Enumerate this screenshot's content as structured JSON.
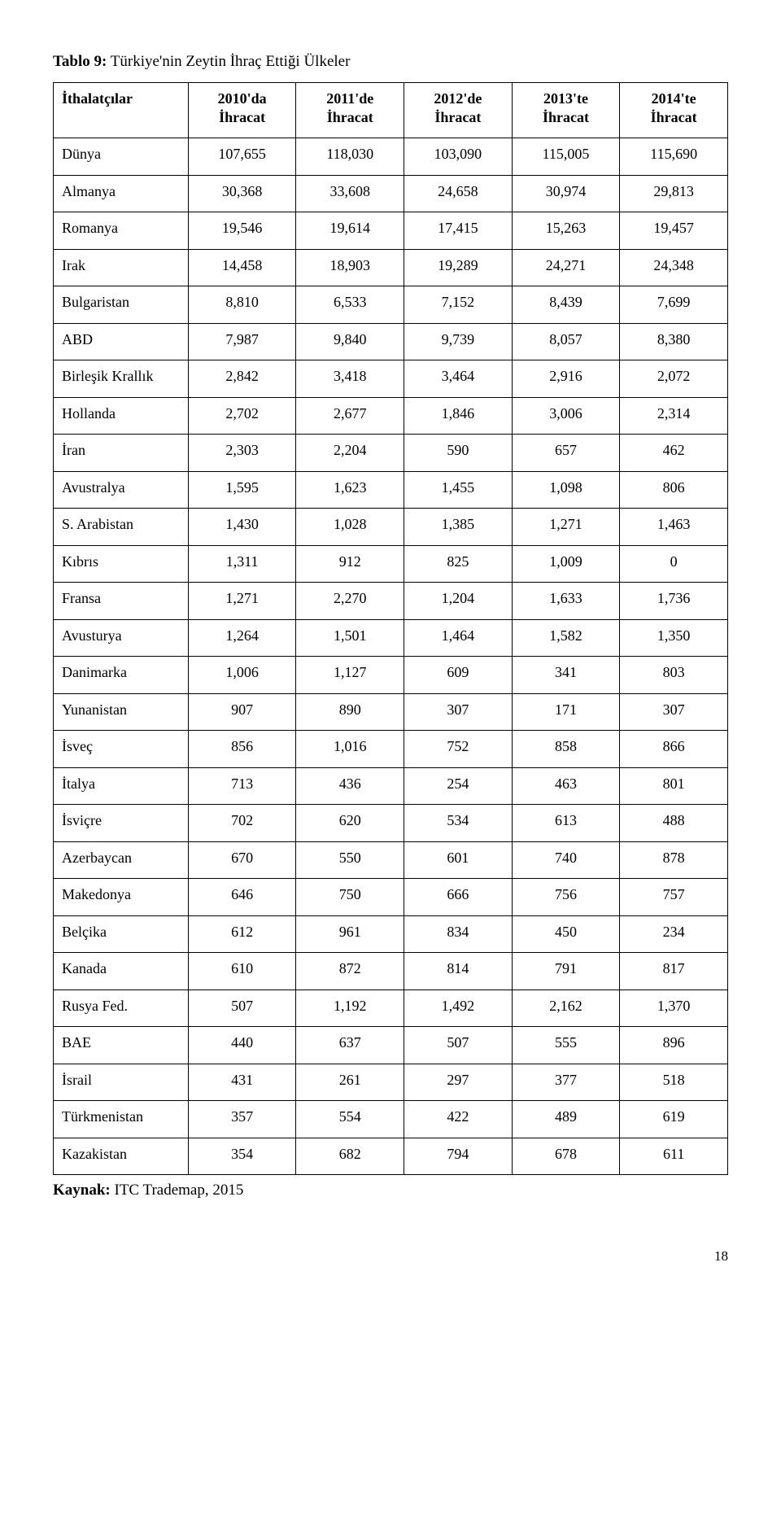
{
  "caption_bold": "Tablo 9:",
  "caption_rest": " Türkiye'nin Zeytin İhraç Ettiği Ülkeler",
  "headers": [
    "İthalatçılar",
    "2010'da İhracat",
    "2011'de İhracat",
    "2012'de İhracat",
    "2013'te İhracat",
    "2014'te İhracat"
  ],
  "rows": [
    [
      "Dünya",
      "107,655",
      "118,030",
      "103,090",
      "115,005",
      "115,690"
    ],
    [
      "Almanya",
      "30,368",
      "33,608",
      "24,658",
      "30,974",
      "29,813"
    ],
    [
      "Romanya",
      "19,546",
      "19,614",
      "17,415",
      "15,263",
      "19,457"
    ],
    [
      "Irak",
      "14,458",
      "18,903",
      "19,289",
      "24,271",
      "24,348"
    ],
    [
      "Bulgaristan",
      "8,810",
      "6,533",
      "7,152",
      "8,439",
      "7,699"
    ],
    [
      "ABD",
      "7,987",
      "9,840",
      "9,739",
      "8,057",
      "8,380"
    ],
    [
      "Birleşik Krallık",
      "2,842",
      "3,418",
      "3,464",
      "2,916",
      "2,072"
    ],
    [
      "Hollanda",
      "2,702",
      "2,677",
      "1,846",
      "3,006",
      "2,314"
    ],
    [
      "İran",
      "2,303",
      "2,204",
      "590",
      "657",
      "462"
    ],
    [
      "Avustralya",
      "1,595",
      "1,623",
      "1,455",
      "1,098",
      "806"
    ],
    [
      "S. Arabistan",
      "1,430",
      "1,028",
      "1,385",
      "1,271",
      "1,463"
    ],
    [
      "Kıbrıs",
      "1,311",
      "912",
      "825",
      "1,009",
      "0"
    ],
    [
      "Fransa",
      "1,271",
      "2,270",
      "1,204",
      "1,633",
      "1,736"
    ],
    [
      "Avusturya",
      "1,264",
      "1,501",
      "1,464",
      "1,582",
      "1,350"
    ],
    [
      "Danimarka",
      "1,006",
      "1,127",
      "609",
      "341",
      "803"
    ],
    [
      "Yunanistan",
      "907",
      "890",
      "307",
      "171",
      "307"
    ],
    [
      "İsveç",
      "856",
      "1,016",
      "752",
      "858",
      "866"
    ],
    [
      "İtalya",
      "713",
      "436",
      "254",
      "463",
      "801"
    ],
    [
      "İsviçre",
      "702",
      "620",
      "534",
      "613",
      "488"
    ],
    [
      "Azerbaycan",
      "670",
      "550",
      "601",
      "740",
      "878"
    ],
    [
      "Makedonya",
      "646",
      "750",
      "666",
      "756",
      "757"
    ],
    [
      "Belçika",
      "612",
      "961",
      "834",
      "450",
      "234"
    ],
    [
      "Kanada",
      "610",
      "872",
      "814",
      "791",
      "817"
    ],
    [
      "Rusya Fed.",
      "507",
      "1,192",
      "1,492",
      "2,162",
      "1,370"
    ],
    [
      "BAE",
      "440",
      "637",
      "507",
      "555",
      "896"
    ],
    [
      "İsrail",
      "431",
      "261",
      "297",
      "377",
      "518"
    ],
    [
      "Türkmenistan",
      "357",
      "554",
      "422",
      "489",
      "619"
    ],
    [
      "Kazakistan",
      "354",
      "682",
      "794",
      "678",
      "611"
    ]
  ],
  "source_bold": "Kaynak:",
  "source_rest": " ITC Trademap, 2015",
  "page_number": "18"
}
